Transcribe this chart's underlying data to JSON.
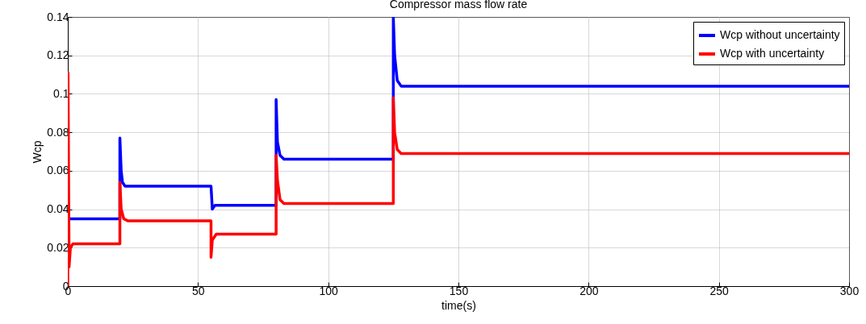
{
  "chart_data": {
    "type": "line",
    "title": "Compressor mass flow rate",
    "xlabel": "time(s)",
    "ylabel": "Wcp",
    "xlim": [
      0,
      300
    ],
    "xticks": [
      0,
      50,
      100,
      150,
      200,
      250,
      300
    ],
    "ylim": [
      0,
      0.14
    ],
    "yticks": [
      0,
      0.02,
      0.04,
      0.06,
      0.08,
      {
        "value": 0.1,
        "label": "0.1"
      },
      0.12,
      0.14
    ],
    "grid": true,
    "legend": "top right",
    "line_style": "solid",
    "series": [
      {
        "name": "Wcp without uncertainty",
        "color": "#0000ff",
        "x": [
          0.3,
          20,
          20,
          20.5,
          21,
          22,
          55,
          55.5,
          56.5,
          80,
          80,
          80.5,
          81.5,
          83,
          125,
          125,
          125.5,
          126.5,
          128,
          300
        ],
        "values": [
          0.035,
          0.035,
          0.077,
          0.06,
          0.054,
          0.052,
          0.052,
          0.04,
          0.042,
          0.042,
          0.097,
          0.075,
          0.068,
          0.066,
          0.066,
          0.14,
          0.12,
          0.107,
          0.104,
          0.104
        ]
      },
      {
        "name": "Wcp with uncertainty",
        "color": "#ff0000",
        "x": [
          0,
          0.1,
          0.5,
          1,
          2,
          20,
          20,
          20.5,
          21.5,
          23,
          55,
          55,
          55.5,
          57,
          80,
          80,
          80.5,
          81.5,
          83,
          125,
          125,
          125.5,
          126.5,
          128,
          300
        ],
        "values": [
          0,
          0.111,
          0.01,
          0.02,
          0.022,
          0.022,
          0.054,
          0.04,
          0.035,
          0.034,
          0.034,
          0.015,
          0.024,
          0.027,
          0.027,
          0.068,
          0.055,
          0.045,
          0.043,
          0.043,
          0.098,
          0.08,
          0.071,
          0.069,
          0.069
        ]
      }
    ]
  }
}
